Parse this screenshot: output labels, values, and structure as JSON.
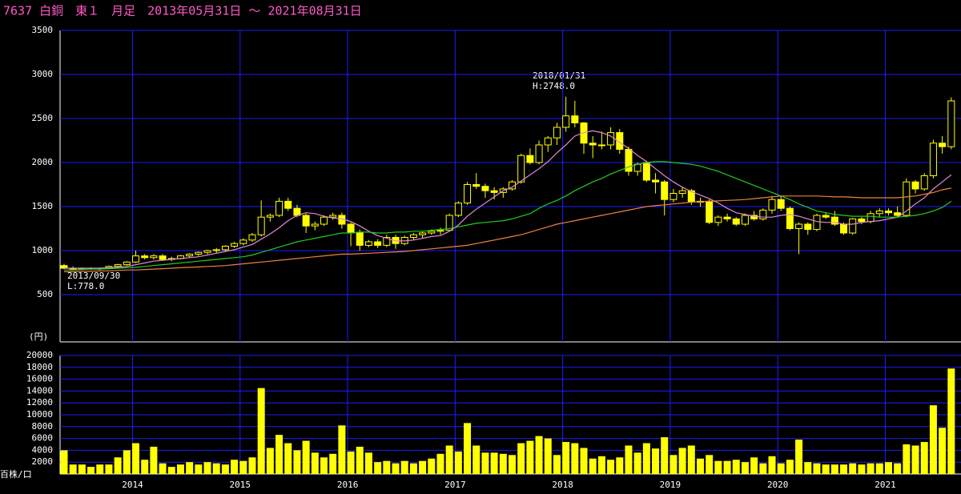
{
  "chart_data": [
    {
      "type": "candlestick",
      "title": "7637 白銅　東１　月足　2013年05月31日 ～ 2021年08月31日",
      "y_label": "(円)",
      "color": "#ffff00",
      "grid": true,
      "grid_color": "#1c1cff",
      "ylim": [
        0,
        3500
      ],
      "yticks": [
        500,
        1000,
        1500,
        2000,
        2500,
        3000,
        3500
      ],
      "annotations": [
        "2018/01/31",
        "H:2748.0",
        "2013/09/30",
        "L:778.0"
      ],
      "ohlc": [
        [
          830,
          850,
          790,
          800
        ],
        [
          800,
          820,
          780,
          790
        ],
        [
          790,
          810,
          780,
          800
        ],
        [
          800,
          810,
          780,
          795
        ],
        [
          795,
          810,
          778,
          800
        ],
        [
          800,
          830,
          790,
          820
        ],
        [
          820,
          850,
          810,
          840
        ],
        [
          840,
          880,
          830,
          870
        ],
        [
          870,
          1000,
          860,
          940
        ],
        [
          940,
          960,
          900,
          920
        ],
        [
          920,
          960,
          900,
          940
        ],
        [
          940,
          960,
          890,
          900
        ],
        [
          900,
          930,
          880,
          910
        ],
        [
          910,
          950,
          900,
          940
        ],
        [
          940,
          970,
          920,
          960
        ],
        [
          960,
          990,
          940,
          980
        ],
        [
          980,
          1010,
          960,
          1000
        ],
        [
          1000,
          1030,
          970,
          1010
        ],
        [
          1010,
          1060,
          990,
          1050
        ],
        [
          1050,
          1100,
          1030,
          1080
        ],
        [
          1080,
          1140,
          1060,
          1120
        ],
        [
          1120,
          1200,
          1100,
          1180
        ],
        [
          1180,
          1570,
          1160,
          1380
        ],
        [
          1380,
          1420,
          1330,
          1400
        ],
        [
          1400,
          1600,
          1380,
          1560
        ],
        [
          1560,
          1600,
          1450,
          1480
        ],
        [
          1480,
          1520,
          1380,
          1400
        ],
        [
          1400,
          1420,
          1200,
          1280
        ],
        [
          1280,
          1330,
          1230,
          1300
        ],
        [
          1300,
          1400,
          1280,
          1380
        ],
        [
          1380,
          1430,
          1350,
          1400
        ],
        [
          1400,
          1430,
          1250,
          1300
        ],
        [
          1300,
          1320,
          1050,
          1200
        ],
        [
          1200,
          1240,
          1000,
          1060
        ],
        [
          1060,
          1120,
          1040,
          1100
        ],
        [
          1100,
          1130,
          1030,
          1060
        ],
        [
          1060,
          1180,
          1040,
          1150
        ],
        [
          1150,
          1180,
          1020,
          1080
        ],
        [
          1080,
          1170,
          1060,
          1150
        ],
        [
          1150,
          1200,
          1120,
          1180
        ],
        [
          1180,
          1220,
          1140,
          1200
        ],
        [
          1200,
          1240,
          1180,
          1220
        ],
        [
          1220,
          1260,
          1180,
          1230
        ],
        [
          1230,
          1420,
          1220,
          1400
        ],
        [
          1400,
          1560,
          1380,
          1540
        ],
        [
          1540,
          1780,
          1520,
          1750
        ],
        [
          1750,
          1880,
          1700,
          1730
        ],
        [
          1730,
          1760,
          1600,
          1680
        ],
        [
          1680,
          1720,
          1580,
          1660
        ],
        [
          1660,
          1720,
          1600,
          1700
        ],
        [
          1700,
          1800,
          1680,
          1780
        ],
        [
          1780,
          2100,
          1760,
          2080
        ],
        [
          2080,
          2160,
          1980,
          2000
        ],
        [
          2000,
          2250,
          1980,
          2200
        ],
        [
          2200,
          2300,
          2120,
          2280
        ],
        [
          2280,
          2450,
          2200,
          2400
        ],
        [
          2400,
          2748,
          2350,
          2530
        ],
        [
          2530,
          2700,
          2400,
          2450
        ],
        [
          2450,
          2460,
          2100,
          2220
        ],
        [
          2220,
          2300,
          2050,
          2200
        ],
        [
          2200,
          2350,
          2150,
          2200
        ],
        [
          2200,
          2400,
          2150,
          2340
        ],
        [
          2340,
          2380,
          2100,
          2150
        ],
        [
          2150,
          2180,
          1850,
          1900
        ],
        [
          1900,
          2000,
          1850,
          1980
        ],
        [
          2000,
          2020,
          1780,
          1800
        ],
        [
          1800,
          1880,
          1650,
          1780
        ],
        [
          1780,
          1800,
          1400,
          1580
        ],
        [
          1580,
          1700,
          1550,
          1650
        ],
        [
          1650,
          1720,
          1600,
          1680
        ],
        [
          1680,
          1700,
          1520,
          1550
        ],
        [
          1550,
          1600,
          1500,
          1560
        ],
        [
          1560,
          1580,
          1300,
          1320
        ],
        [
          1320,
          1400,
          1280,
          1380
        ],
        [
          1380,
          1420,
          1330,
          1360
        ],
        [
          1360,
          1380,
          1280,
          1300
        ],
        [
          1300,
          1420,
          1280,
          1400
        ],
        [
          1400,
          1450,
          1340,
          1360
        ],
        [
          1360,
          1480,
          1340,
          1460
        ],
        [
          1460,
          1620,
          1420,
          1580
        ],
        [
          1580,
          1620,
          1450,
          1480
        ],
        [
          1480,
          1500,
          1230,
          1250
        ],
        [
          1250,
          1320,
          960,
          1300
        ],
        [
          1300,
          1320,
          1180,
          1240
        ],
        [
          1240,
          1420,
          1220,
          1400
        ],
        [
          1400,
          1430,
          1360,
          1380
        ],
        [
          1380,
          1450,
          1280,
          1300
        ],
        [
          1300,
          1320,
          1180,
          1200
        ],
        [
          1200,
          1370,
          1180,
          1360
        ],
        [
          1360,
          1380,
          1300,
          1330
        ],
        [
          1330,
          1450,
          1310,
          1420
        ],
        [
          1420,
          1480,
          1380,
          1450
        ],
        [
          1450,
          1480,
          1400,
          1430
        ],
        [
          1430,
          1500,
          1380,
          1400
        ],
        [
          1400,
          1820,
          1380,
          1780
        ],
        [
          1780,
          1800,
          1650,
          1700
        ],
        [
          1700,
          1880,
          1680,
          1850
        ],
        [
          1850,
          2260,
          1820,
          2220
        ],
        [
          2220,
          2300,
          2100,
          2180
        ],
        [
          2180,
          2740,
          2150,
          2700
        ]
      ],
      "series": [
        {
          "color": "#e08ad8",
          "values": [
            800,
            800,
            800,
            800,
            800,
            805,
            810,
            820,
            840,
            860,
            880,
            890,
            900,
            910,
            920,
            930,
            950,
            970,
            990,
            1010,
            1040,
            1070,
            1130,
            1190,
            1260,
            1340,
            1400,
            1430,
            1420,
            1390,
            1370,
            1360,
            1330,
            1280,
            1220,
            1170,
            1140,
            1110,
            1110,
            1120,
            1140,
            1160,
            1170,
            1220,
            1290,
            1390,
            1470,
            1540,
            1610,
            1680,
            1720,
            1790,
            1860,
            1930,
            2010,
            2110,
            2200,
            2300,
            2340,
            2360,
            2340,
            2300,
            2230,
            2160,
            2080,
            2010,
            1930,
            1850,
            1780,
            1720,
            1670,
            1630,
            1590,
            1540,
            1480,
            1430,
            1410,
            1390,
            1380,
            1380,
            1400,
            1410,
            1390,
            1360,
            1330,
            1320,
            1320,
            1300,
            1300,
            1320,
            1330,
            1340,
            1360,
            1380,
            1450,
            1530,
            1600,
            1700,
            1780,
            1860
          ]
        },
        {
          "color": "#22cc22",
          "values": [
            780,
            780,
            785,
            790,
            790,
            795,
            800,
            805,
            810,
            820,
            830,
            840,
            850,
            860,
            870,
            880,
            890,
            900,
            910,
            920,
            930,
            950,
            980,
            1010,
            1040,
            1070,
            1100,
            1120,
            1140,
            1160,
            1180,
            1200,
            1200,
            1210,
            1210,
            1200,
            1200,
            1210,
            1210,
            1220,
            1220,
            1230,
            1240,
            1250,
            1270,
            1290,
            1310,
            1320,
            1330,
            1340,
            1360,
            1390,
            1420,
            1480,
            1530,
            1570,
            1620,
            1680,
            1730,
            1780,
            1820,
            1870,
            1910,
            1950,
            1980,
            2000,
            2010,
            2010,
            2000,
            1990,
            1980,
            1960,
            1930,
            1900,
            1860,
            1820,
            1780,
            1740,
            1700,
            1660,
            1620,
            1580,
            1530,
            1490,
            1450,
            1430,
            1410,
            1400,
            1390,
            1390,
            1390,
            1380,
            1380,
            1380,
            1390,
            1400,
            1420,
            1450,
            1490,
            1560
          ]
        },
        {
          "color": "#f08040",
          "values": [
            760,
            760,
            765,
            765,
            770,
            770,
            775,
            780,
            780,
            785,
            790,
            795,
            800,
            805,
            810,
            815,
            820,
            825,
            830,
            840,
            850,
            860,
            870,
            880,
            890,
            900,
            910,
            920,
            930,
            940,
            950,
            960,
            960,
            965,
            970,
            975,
            980,
            985,
            990,
            1000,
            1010,
            1020,
            1030,
            1040,
            1050,
            1060,
            1080,
            1100,
            1120,
            1140,
            1160,
            1180,
            1210,
            1240,
            1270,
            1300,
            1320,
            1340,
            1360,
            1380,
            1400,
            1420,
            1440,
            1460,
            1480,
            1500,
            1510,
            1520,
            1530,
            1540,
            1550,
            1555,
            1560,
            1565,
            1570,
            1575,
            1580,
            1590,
            1600,
            1610,
            1620,
            1620,
            1620,
            1620,
            1620,
            1615,
            1610,
            1610,
            1605,
            1600,
            1600,
            1600,
            1600,
            1600,
            1610,
            1620,
            1640,
            1660,
            1690,
            1710
          ]
        }
      ]
    },
    {
      "type": "bar",
      "y_label": "百株/口",
      "color": "#ffff00",
      "grid": true,
      "ylim": [
        0,
        20000
      ],
      "yticks": [
        2000,
        4000,
        6000,
        8000,
        10000,
        12000,
        14000,
        16000,
        18000,
        20000
      ],
      "categories": [
        null,
        null,
        null,
        null,
        null,
        null,
        null,
        null,
        "2014",
        null,
        null,
        null,
        null,
        null,
        null,
        null,
        null,
        null,
        null,
        null,
        "2015",
        null,
        null,
        null,
        null,
        null,
        null,
        null,
        null,
        null,
        null,
        null,
        "2016",
        null,
        null,
        null,
        null,
        null,
        null,
        null,
        null,
        null,
        null,
        null,
        "2017",
        null,
        null,
        null,
        null,
        null,
        null,
        null,
        null,
        null,
        null,
        null,
        "2018",
        null,
        null,
        null,
        null,
        null,
        null,
        null,
        null,
        null,
        null,
        null,
        "2019",
        null,
        null,
        null,
        null,
        null,
        null,
        null,
        null,
        null,
        null,
        null,
        "2020",
        null,
        null,
        null,
        null,
        null,
        null,
        null,
        null,
        null,
        null,
        null,
        "2021",
        null,
        null,
        null,
        null,
        null,
        null,
        null
      ],
      "values": [
        4000,
        1600,
        1600,
        1200,
        1600,
        1600,
        2800,
        4000,
        5200,
        2400,
        4600,
        1800,
        1200,
        1600,
        2000,
        1600,
        2000,
        1800,
        1600,
        2400,
        2200,
        2800,
        14500,
        4400,
        6600,
        5200,
        4000,
        5600,
        3600,
        2800,
        3400,
        8200,
        3800,
        4600,
        3600,
        2000,
        2200,
        1800,
        2200,
        1800,
        2200,
        2600,
        3400,
        4800,
        3800,
        8600,
        4800,
        3600,
        3600,
        3400,
        3200,
        5200,
        5600,
        6400,
        6000,
        3200,
        5400,
        5200,
        4400,
        2600,
        3000,
        2400,
        2800,
        4800,
        3600,
        5200,
        4300,
        6200,
        3200,
        4400,
        4800,
        2600,
        3200,
        2200,
        2200,
        2400,
        2000,
        2800,
        1800,
        3000,
        1800,
        2400,
        5800,
        2000,
        1800,
        1600,
        1600,
        1600,
        1800,
        1600,
        1800,
        1800,
        2000,
        1800,
        5000,
        4800,
        5400,
        11600,
        7800,
        17800
      ]
    }
  ]
}
